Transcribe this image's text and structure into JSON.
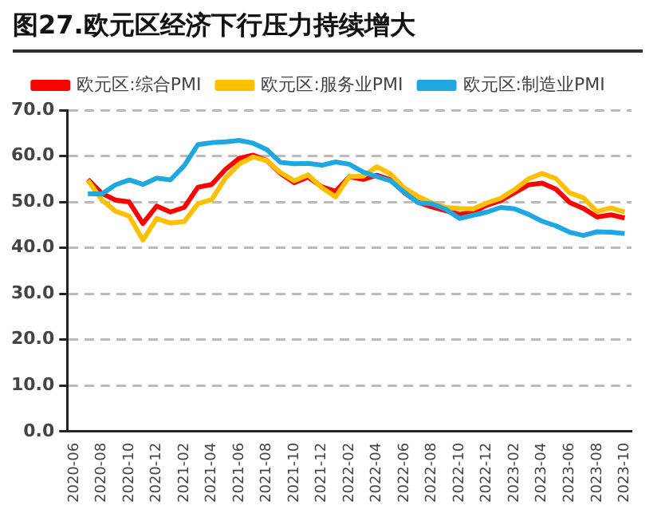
{
  "chart_data": {
    "type": "line",
    "title": "图27.欧元区经济下行压力持续增大",
    "categories": [
      "2020-06",
      null,
      "2020-08",
      null,
      "2020-10",
      null,
      "2020-12",
      null,
      "2021-02",
      null,
      "2021-04",
      null,
      "2021-06",
      null,
      "2021-08",
      null,
      "2021-10",
      null,
      "2021-12",
      null,
      "2022-02",
      null,
      "2022-04",
      null,
      "2022-06",
      null,
      "2022-08",
      null,
      "2022-10",
      null,
      "2022-12",
      null,
      "2023-02",
      null,
      "2023-04",
      null,
      "2023-06",
      null,
      "2023-08",
      null,
      "2023-10"
    ],
    "series": [
      {
        "name": "欧元区:综合PMI",
        "color": "#ff0000",
        "values": [
          null,
          54.9,
          51.9,
          50.4,
          50.0,
          45.3,
          49.1,
          47.8,
          48.8,
          53.2,
          53.8,
          57.1,
          59.5,
          60.2,
          59.0,
          56.2,
          54.2,
          55.4,
          53.3,
          52.3,
          55.5,
          54.9,
          55.8,
          54.8,
          52.0,
          49.9,
          48.9,
          48.1,
          47.3,
          47.8,
          49.3,
          50.3,
          52.0,
          53.7,
          54.1,
          52.8,
          49.9,
          48.6,
          46.7,
          47.2,
          46.5
        ]
      },
      {
        "name": "欧元区:服务业PMI",
        "color": "#ffc000",
        "values": [
          null,
          54.7,
          50.5,
          48.0,
          46.9,
          41.7,
          46.4,
          45.4,
          45.7,
          49.6,
          50.5,
          55.2,
          58.3,
          59.8,
          59.0,
          56.4,
          54.6,
          55.9,
          53.1,
          51.1,
          55.5,
          55.6,
          57.7,
          56.1,
          53.0,
          51.2,
          49.8,
          48.8,
          48.6,
          48.5,
          49.8,
          50.8,
          52.7,
          55.0,
          56.2,
          55.1,
          52.0,
          50.9,
          47.9,
          48.7,
          47.8
        ]
      },
      {
        "name": "欧元区:制造业PMI",
        "color": "#1ea7e1",
        "values": [
          null,
          51.8,
          51.7,
          53.7,
          54.8,
          53.8,
          55.2,
          54.8,
          57.9,
          62.5,
          62.9,
          63.1,
          63.4,
          62.8,
          61.4,
          58.6,
          58.3,
          58.4,
          58.0,
          58.7,
          58.2,
          56.5,
          55.5,
          54.6,
          52.1,
          49.8,
          49.6,
          48.4,
          46.4,
          47.1,
          47.8,
          48.8,
          48.5,
          47.3,
          45.8,
          44.8,
          43.4,
          42.7,
          43.5,
          43.4,
          43.1
        ]
      }
    ],
    "ylim": [
      0,
      70
    ],
    "yticks": [
      {
        "value": 0,
        "label": "0.0"
      },
      {
        "value": 10,
        "label": "10.0"
      },
      {
        "value": 20,
        "label": "20.0"
      },
      {
        "value": 30,
        "label": "30.0"
      },
      {
        "value": 40,
        "label": "40.0"
      },
      {
        "value": 50,
        "label": "50.0"
      },
      {
        "value": 60,
        "label": "60.0"
      },
      {
        "value": 70,
        "label": "70.0"
      }
    ],
    "grid": "y",
    "legend": "top",
    "marker": "none",
    "line_style": "solid"
  }
}
